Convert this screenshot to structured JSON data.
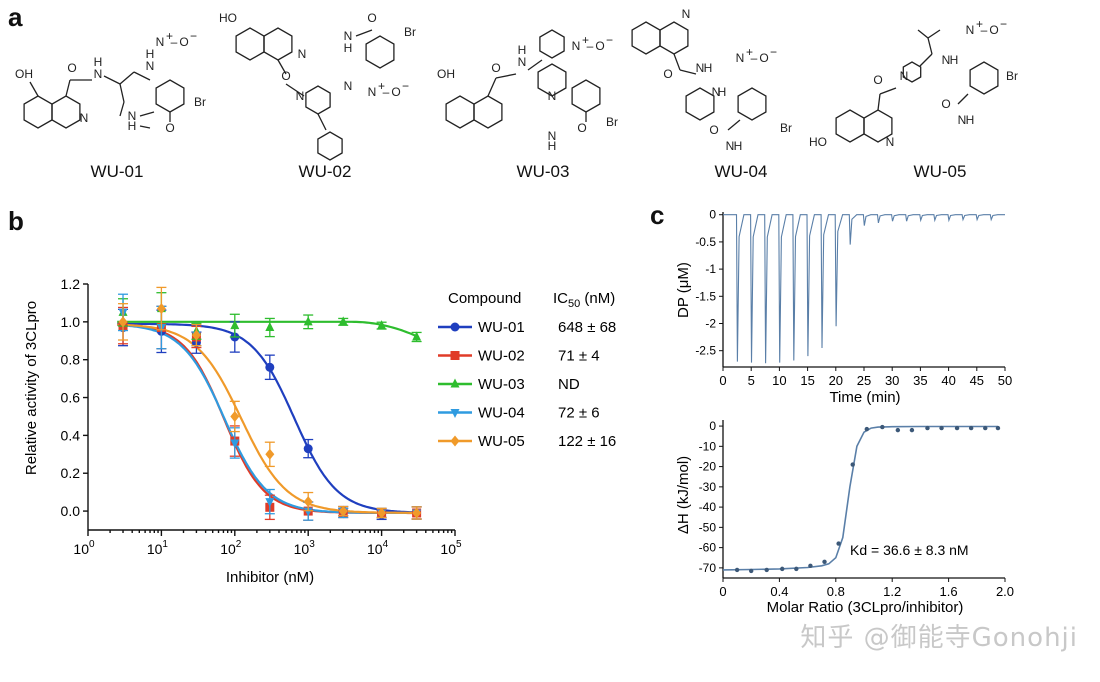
{
  "panel_labels": {
    "a": "a",
    "b": "b",
    "c": "c"
  },
  "compounds": [
    "WU-01",
    "WU-02",
    "WU-03",
    "WU-04",
    "WU-05"
  ],
  "chem_labels": {
    "oh": "OH",
    "ho": "HO",
    "n": "N",
    "h": "H",
    "br": "Br",
    "no2_n": "N",
    "no2_plus": "+",
    "no2_o": "O",
    "no2_minus": "−",
    "o": "O",
    "nh": "H"
  },
  "chart_data": [
    {
      "type": "scatter",
      "title": "",
      "xlabel": "Inhibitor (nM)",
      "ylabel": "Relative activity of 3CLpro",
      "x_scale": "log",
      "xlim": [
        1,
        100000
      ],
      "ylim": [
        -0.1,
        1.2
      ],
      "xtick_labels": [
        "10",
        "10",
        "10",
        "10",
        "10",
        "10"
      ],
      "xtick_exponents": [
        "0",
        "1",
        "2",
        "3",
        "4",
        "5"
      ],
      "ytick_labels": [
        "0.0",
        "0.2",
        "0.4",
        "0.6",
        "0.8",
        "1.0",
        "1.2"
      ],
      "legend": {
        "header": "Compound",
        "value_header": "IC",
        "value_header_sub": "50",
        "value_header_unit": " (nM)",
        "position": "right"
      },
      "x": [
        3,
        10,
        30,
        100,
        300,
        1000,
        3000,
        10000,
        30000
      ],
      "series": [
        {
          "name": "WU-01",
          "ic50_label": "648 ± 68",
          "ic50": 648,
          "hill": 1.5,
          "color": "#1f3fbf",
          "marker": "circle",
          "values": [
            0.97,
            0.95,
            0.89,
            0.92,
            0.76,
            0.33,
            0.0,
            -0.02,
            -0.01
          ]
        },
        {
          "name": "WU-02",
          "ic50_label": "71 ± 4",
          "ic50": 71,
          "hill": 1.6,
          "color": "#e03c28",
          "marker": "square",
          "values": [
            0.98,
            0.97,
            0.92,
            0.37,
            0.02,
            0.0,
            -0.01,
            -0.01,
            -0.01
          ]
        },
        {
          "name": "WU-03",
          "ic50_label": "ND",
          "ic50": null,
          "hill": null,
          "color": "#2ebd2e",
          "marker": "triangle-up",
          "values": [
            1.05,
            1.07,
            0.95,
            0.98,
            0.97,
            1.0,
            1.0,
            0.98,
            0.92
          ]
        },
        {
          "name": "WU-04",
          "ic50_label": "72 ± 6",
          "ic50": 72,
          "hill": 1.5,
          "color": "#2f9be0",
          "marker": "triangle-down",
          "values": [
            1.05,
            0.97,
            0.93,
            0.36,
            0.05,
            0.0,
            -0.01,
            -0.01,
            -0.01
          ]
        },
        {
          "name": "WU-05",
          "ic50_label": "122 ± 16",
          "ic50": 122,
          "hill": 1.4,
          "color": "#f09a2a",
          "marker": "diamond",
          "values": [
            1.0,
            1.07,
            0.93,
            0.5,
            0.3,
            0.05,
            0.0,
            -0.01,
            -0.01
          ]
        }
      ],
      "error_bars": [
        0.12,
        0.14,
        0.07,
        0.1,
        0.08,
        0.06,
        0.03,
        0.03,
        0.04
      ]
    },
    {
      "type": "line",
      "title": "",
      "xlabel": "Time (min)",
      "ylabel": "DP (μM)",
      "xlim": [
        0,
        50
      ],
      "ylim": [
        -2.8,
        0.05
      ],
      "xtick_labels": [
        "0",
        "5",
        "10",
        "15",
        "20",
        "25",
        "30",
        "35",
        "40",
        "45",
        "50"
      ],
      "ytick_labels": [
        "0",
        "-0.5",
        "-1",
        "-1.5",
        "-2",
        "-2.5"
      ],
      "injection_times": [
        2.5,
        5,
        7.5,
        10,
        12.5,
        15,
        17.5,
        20,
        22.5,
        25,
        27.5,
        30,
        32.5,
        35,
        37.5,
        40,
        42.5,
        45,
        47.5
      ],
      "injection_peaks": [
        -2.7,
        -2.72,
        -2.73,
        -2.72,
        -2.68,
        -2.6,
        -2.45,
        -2.05,
        -0.55,
        -0.2,
        -0.15,
        -0.12,
        -0.12,
        -0.1,
        -0.1,
        -0.1,
        -0.09,
        -0.09,
        -0.09
      ],
      "color": "#5a7fa8"
    },
    {
      "type": "scatter",
      "title": "",
      "xlabel": "Molar Ratio (3CLpro/inhibitor)",
      "ylabel": "ΔH (kJ/mol)",
      "xlim": [
        0,
        2.0
      ],
      "ylim": [
        -75,
        3
      ],
      "xtick_labels": [
        "0",
        "0.4",
        "0.8",
        "1.2",
        "1.6",
        "2.0"
      ],
      "ytick_labels": [
        "0",
        "-10",
        "-20",
        "-30",
        "-40",
        "-50",
        "-60",
        "-70"
      ],
      "annotation": "Kd = 36.6 ± 8.3 nM",
      "x": [
        0.1,
        0.2,
        0.31,
        0.42,
        0.52,
        0.62,
        0.72,
        0.82,
        0.92,
        1.02,
        1.13,
        1.24,
        1.34,
        1.45,
        1.55,
        1.66,
        1.76,
        1.86,
        1.95
      ],
      "values": [
        -71,
        -71.5,
        -71,
        -70.5,
        -70.5,
        -69,
        -67,
        -58,
        -19,
        -1.5,
        -0.5,
        -2,
        -2,
        -1,
        -1,
        -1,
        -1,
        -1,
        -1
      ],
      "fit_x": [
        0,
        0.2,
        0.4,
        0.6,
        0.7,
        0.75,
        0.8,
        0.85,
        0.9,
        0.95,
        1.0,
        1.05,
        1.1,
        1.2,
        1.4,
        1.6,
        1.8,
        1.95
      ],
      "fit_y": [
        -71,
        -70.8,
        -70.5,
        -69.8,
        -69,
        -68,
        -65,
        -55,
        -30,
        -10,
        -3,
        -1,
        -0.5,
        -0.3,
        -0.2,
        -0.2,
        -0.2,
        -0.2
      ],
      "color": "#5a7fa8"
    }
  ],
  "watermark": "知乎 @御能寺Gonohji"
}
